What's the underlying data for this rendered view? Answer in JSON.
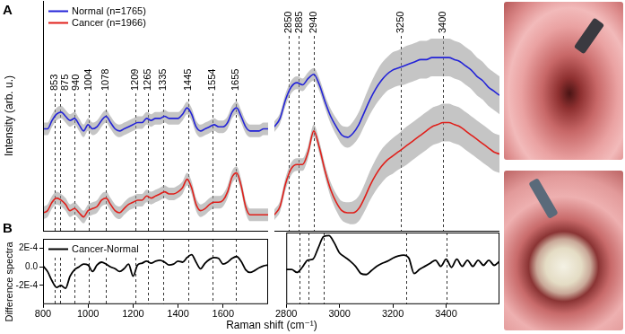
{
  "chart_data": [
    {
      "type": "line",
      "title": "A",
      "y_label": "Intensity (arb. u.)",
      "xlim": [
        800,
        1800
      ],
      "ylim": [
        0,
        11
      ],
      "tick_labels": false,
      "grid": false,
      "legend": "top left",
      "annotations": [
        853,
        875,
        940,
        1004,
        1078,
        1209,
        1265,
        1335,
        1445,
        1554,
        1655
      ],
      "x": [
        800,
        820,
        840,
        860,
        880,
        900,
        920,
        940,
        960,
        980,
        1000,
        1020,
        1040,
        1060,
        1080,
        1100,
        1120,
        1140,
        1160,
        1180,
        1200,
        1220,
        1240,
        1260,
        1280,
        1300,
        1320,
        1340,
        1360,
        1380,
        1400,
        1420,
        1440,
        1460,
        1480,
        1500,
        1520,
        1540,
        1560,
        1580,
        1600,
        1620,
        1640,
        1660,
        1680,
        1700,
        1720,
        1740,
        1760,
        1780,
        1800
      ],
      "series": [
        {
          "name": "Normal (n=1765)",
          "color": "#2323d8",
          "std": 0.3,
          "values": [
            4.9,
            4.9,
            5.3,
            5.6,
            5.7,
            5.5,
            5.3,
            5.4,
            5.1,
            4.8,
            5.1,
            4.9,
            5.0,
            5.3,
            5.5,
            5.2,
            4.9,
            4.8,
            4.9,
            5.0,
            5.1,
            5.2,
            5.2,
            5.4,
            5.3,
            5.4,
            5.4,
            5.5,
            5.4,
            5.4,
            5.4,
            5.6,
            5.9,
            5.6,
            5.0,
            4.8,
            4.9,
            5.0,
            5.1,
            5.0,
            5.0,
            5.2,
            5.7,
            5.9,
            5.5,
            5.0,
            4.8,
            4.8,
            4.8,
            4.9,
            4.9
          ]
        },
        {
          "name": "Cancer (n=1966)",
          "color": "#e0201b",
          "std": 0.3,
          "values": [
            0.9,
            1.0,
            1.4,
            1.6,
            1.5,
            1.3,
            1.0,
            1.1,
            0.9,
            0.7,
            1.0,
            1.1,
            1.2,
            1.5,
            1.6,
            1.3,
            1.0,
            0.9,
            1.1,
            1.3,
            1.4,
            1.5,
            1.5,
            1.7,
            1.6,
            1.7,
            1.8,
            1.9,
            1.8,
            1.8,
            1.9,
            2.1,
            2.5,
            2.1,
            1.3,
            1.0,
            1.1,
            1.3,
            1.4,
            1.4,
            1.5,
            1.9,
            2.6,
            2.8,
            2.2,
            1.2,
            0.8,
            0.8,
            0.8,
            0.8,
            0.8
          ]
        }
      ]
    },
    {
      "type": "line",
      "xlim": [
        2800,
        3600
      ],
      "ylim": [
        0,
        11
      ],
      "tick_labels": false,
      "grid": false,
      "annotations": [
        2850,
        2885,
        2940,
        3250,
        3400
      ],
      "x": [
        2800,
        2820,
        2840,
        2860,
        2880,
        2900,
        2920,
        2940,
        2960,
        2980,
        3000,
        3020,
        3040,
        3060,
        3080,
        3100,
        3120,
        3140,
        3160,
        3180,
        3200,
        3220,
        3240,
        3260,
        3280,
        3300,
        3320,
        3340,
        3360,
        3380,
        3400,
        3420,
        3440,
        3460,
        3480,
        3500,
        3520,
        3540,
        3560,
        3580,
        3600
      ],
      "series": [
        {
          "color": "#2323d8",
          "std": [
            0.25,
            0.25,
            0.3,
            0.3,
            0.3,
            0.3,
            0.3,
            0.3,
            0.3,
            0.3,
            0.35,
            0.4,
            0.45,
            0.5,
            0.55,
            0.6,
            0.65,
            0.7,
            0.75,
            0.8,
            0.8,
            0.85,
            0.85,
            0.9,
            0.9,
            0.9,
            0.9,
            0.9,
            0.9,
            0.9,
            0.9,
            0.9,
            0.9,
            0.9,
            0.9,
            0.9,
            0.9,
            0.9,
            0.9,
            0.9,
            0.9
          ],
          "values": [
            5.0,
            5.4,
            6.3,
            6.9,
            7.1,
            7.0,
            7.3,
            7.5,
            7.0,
            6.2,
            5.5,
            5.0,
            4.6,
            4.5,
            4.7,
            5.1,
            5.7,
            6.3,
            6.8,
            7.2,
            7.5,
            7.7,
            7.8,
            7.9,
            8.0,
            8.1,
            8.2,
            8.2,
            8.3,
            8.3,
            8.3,
            8.3,
            8.2,
            8.1,
            7.9,
            7.7,
            7.4,
            7.2,
            6.9,
            6.7,
            6.5
          ]
        },
        {
          "color": "#e0201b",
          "std": [
            0.25,
            0.25,
            0.3,
            0.3,
            0.3,
            0.3,
            0.3,
            0.3,
            0.3,
            0.3,
            0.35,
            0.4,
            0.45,
            0.5,
            0.55,
            0.6,
            0.65,
            0.7,
            0.75,
            0.8,
            0.8,
            0.85,
            0.85,
            0.9,
            0.9,
            0.9,
            0.9,
            0.9,
            0.9,
            0.9,
            0.9,
            0.9,
            0.9,
            0.9,
            0.9,
            0.9,
            0.9,
            0.9,
            0.9,
            0.9,
            0.9
          ],
          "values": [
            0.8,
            1.2,
            2.3,
            3.0,
            3.2,
            3.2,
            3.8,
            4.8,
            4.0,
            2.9,
            2.0,
            1.4,
            1.0,
            0.9,
            0.9,
            1.1,
            1.6,
            2.2,
            2.7,
            3.1,
            3.4,
            3.6,
            3.8,
            4.0,
            4.2,
            4.4,
            4.6,
            4.8,
            5.0,
            5.1,
            5.2,
            5.2,
            5.1,
            5.0,
            4.8,
            4.6,
            4.4,
            4.2,
            4.0,
            3.8,
            3.7
          ]
        }
      ]
    },
    {
      "type": "line",
      "title": "B",
      "y_label": "Difference spectra",
      "x_label": "Raman shift (cm⁻¹)",
      "xlim": [
        800,
        1800
      ],
      "xticks": [
        800,
        1000,
        1200,
        1400,
        1600
      ],
      "ylim": [
        -0.0004,
        0.0003
      ],
      "yticks": [
        {
          "value": -0.0002,
          "label": "-2E-4"
        },
        {
          "value": 0,
          "label": "0.0"
        },
        {
          "value": 0.0002,
          "label": "2E-4"
        }
      ],
      "grid": false,
      "legend": "top left",
      "x": [
        800,
        820,
        840,
        860,
        880,
        900,
        920,
        940,
        960,
        980,
        1000,
        1020,
        1040,
        1060,
        1080,
        1100,
        1120,
        1140,
        1160,
        1180,
        1200,
        1220,
        1240,
        1260,
        1280,
        1300,
        1320,
        1340,
        1360,
        1380,
        1400,
        1420,
        1440,
        1460,
        1480,
        1500,
        1520,
        1540,
        1560,
        1580,
        1600,
        1620,
        1640,
        1660,
        1680,
        1700,
        1720,
        1740,
        1760,
        1780,
        1800
      ],
      "series": [
        {
          "name": "Cancer-Normal",
          "color": "#000000",
          "values": [
            1e-05,
            -5e-05,
            -0.00015,
            -0.00022,
            -0.0002,
            -0.00023,
            -0.0001,
            -3e-05,
            0,
            3e-05,
            2e-05,
            -5e-05,
            2e-05,
            5e-05,
            3e-05,
            0,
            -2e-05,
            -5e-05,
            -2e-05,
            3e-05,
            -0.0001,
            2e-05,
            4e-05,
            6e-05,
            4e-05,
            6e-05,
            7e-05,
            5e-05,
            2e-05,
            3e-05,
            6e-05,
            5e-05,
            0.0001,
            0.00013,
            5e-05,
            -2e-05,
            4e-05,
            8e-05,
            0.0001,
            9e-05,
            3e-05,
            5e-05,
            9e-05,
            0.00011,
            6e-05,
            -3e-05,
            -6e-05,
            -4e-05,
            -1e-05,
            1e-05,
            2e-05
          ]
        }
      ]
    },
    {
      "type": "line",
      "xlim": [
        2800,
        3600
      ],
      "xticks": [
        2800,
        3000,
        3200,
        3400
      ],
      "ylim": [
        -0.0004,
        0.0003
      ],
      "tick_labels": "x",
      "grid": false,
      "x": [
        2800,
        2820,
        2840,
        2860,
        2880,
        2900,
        2920,
        2940,
        2960,
        2980,
        3000,
        3020,
        3040,
        3060,
        3080,
        3100,
        3120,
        3140,
        3160,
        3180,
        3200,
        3220,
        3240,
        3260,
        3280,
        3300,
        3320,
        3340,
        3360,
        3380,
        3400,
        3420,
        3440,
        3460,
        3480,
        3500,
        3520,
        3540,
        3560,
        3580,
        3600
      ],
      "series": [
        {
          "color": "#000000",
          "values": [
            -6e-05,
            -6e-05,
            -9e-05,
            -4e-05,
            3e-05,
            4e-05,
            0.00015,
            0.00026,
            0.00027,
            0.0002,
            0.0001,
            6e-05,
            2e-05,
            -3e-05,
            -0.0001,
            -0.00011,
            -7e-05,
            -3e-05,
            0,
            2e-05,
            5e-05,
            7e-05,
            8e-05,
            5e-05,
            -0.0001,
            -6e-05,
            -3e-05,
            0,
            3e-05,
            -3e-05,
            4e-05,
            -4e-05,
            4e-05,
            -3e-05,
            3e-05,
            -3e-05,
            3e-05,
            -2e-05,
            3e-05,
            -2e-05,
            2e-05
          ]
        }
      ]
    }
  ]
}
